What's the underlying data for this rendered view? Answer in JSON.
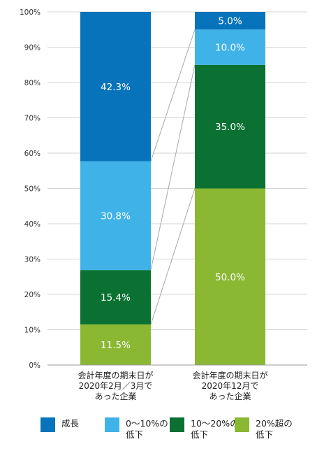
{
  "chart_data": {
    "type": "bar",
    "stacked": true,
    "ylim": [
      0,
      100
    ],
    "y_ticks": [
      "0%",
      "10%",
      "20%",
      "30%",
      "40%",
      "50%",
      "60%",
      "70%",
      "80%",
      "90%",
      "100%"
    ],
    "categories": [
      [
        "会計年度の期末日が",
        "2020年2月／3月で",
        "あった企業"
      ],
      [
        "会計年度の期末日が",
        "2020年12月で",
        "あった企業"
      ]
    ],
    "series": [
      {
        "name": "20%超の低下",
        "name_lines": [
          "20%超の",
          "低下"
        ],
        "color": "#8ab833",
        "values": [
          11.5,
          50.0
        ],
        "labels": [
          "11.5%",
          "50.0%"
        ]
      },
      {
        "name": "10〜20%の低下",
        "name_lines": [
          "10〜20%の",
          "低下"
        ],
        "color": "#0a7132",
        "values": [
          15.4,
          35.0
        ],
        "labels": [
          "15.4%",
          "35.0%"
        ]
      },
      {
        "name": "0〜10%の低下",
        "name_lines": [
          "0〜10%の",
          "低下"
        ],
        "color": "#3fb3e8",
        "values": [
          30.8,
          10.0
        ],
        "labels": [
          "30.8%",
          "10.0%"
        ]
      },
      {
        "name": "成長",
        "name_lines": [
          "成長"
        ],
        "color": "#0773bb",
        "values": [
          42.3,
          5.0
        ],
        "labels": [
          "42.3%",
          "5.0%"
        ]
      }
    ],
    "legend_order": [
      "成長",
      "0〜10%の低下",
      "10〜20%の低下",
      "20%超の低下"
    ],
    "grid": true,
    "connector_lines": true,
    "legend_position": "bottom"
  }
}
